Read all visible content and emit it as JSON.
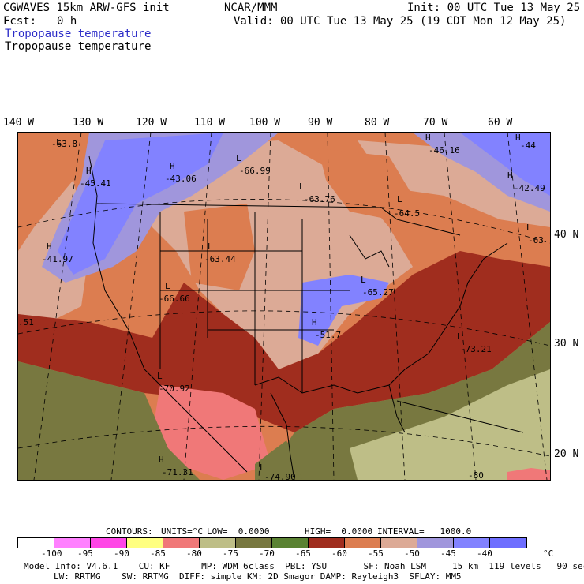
{
  "header": {
    "model_title": "CGWAVES 15km ARW-GFS init",
    "org": "NCAR/MMM",
    "init": "Init: 00 UTC Tue 13 May 25",
    "fcst_label": "Fcst:",
    "fcst_value": "0 h",
    "valid": "Valid: 00 UTC Tue 13 May 25 (19 CDT Mon 12 May 25)",
    "field_title_blue": "Tropopause temperature",
    "field_title": "Tropopause temperature"
  },
  "longitude_labels": [
    "140 W",
    "130 W",
    "120 W",
    "110 W",
    "100 W",
    "90 W",
    "80 W",
    "70 W",
    "60 W"
  ],
  "latitude_labels": [
    "40 N",
    "30 N",
    "20 N"
  ],
  "map_labels": [
    {
      "marker": "H",
      "value": "-45.41"
    },
    {
      "marker": "H",
      "value": "-43.06"
    },
    {
      "marker": "L",
      "value": "-66.99"
    },
    {
      "marker": "L",
      "value": "-63.76"
    },
    {
      "marker": "H",
      "value": "-46.16"
    },
    {
      "marker": "H",
      "value": "-44"
    },
    {
      "marker": "H",
      "value": "-42.49"
    },
    {
      "marker": "L",
      "value": "-64.5"
    },
    {
      "marker": "L",
      "value": "-63"
    },
    {
      "marker": "H",
      "value": "-41.97"
    },
    {
      "marker": "L",
      "value": "-63.44"
    },
    {
      "marker": "L",
      "value": "-66.66"
    },
    {
      "marker": "L",
      "value": "-65.27"
    },
    {
      "marker": "H",
      "value": "-51.7"
    },
    {
      "marker": "L",
      "value": "-73.21"
    },
    {
      "marker": "L",
      "value": "-70.92"
    },
    {
      "marker": "H",
      "value": "-71.31"
    },
    {
      "marker": "L",
      "value": "-74.90"
    },
    {
      "marker": "L",
      "value": "-63.8"
    },
    {
      "marker": "",
      "value": ".51"
    },
    {
      "marker": "",
      "value": "-80"
    }
  ],
  "contours": {
    "label": "CONTOURS:",
    "units": "UNITS=°C",
    "low": "LOW=  0.0000",
    "high": "HIGH=  0.0000",
    "interval": "INTERVAL=   1000.0"
  },
  "colorbar": {
    "colors": [
      "#ffffff",
      "#ff80ff",
      "#ff46e6",
      "#ffff80",
      "#f07878",
      "#bebe87",
      "#787840",
      "#5a8232",
      "#a02d1e",
      "#dc7d50",
      "#dcaa96",
      "#a096dc",
      "#8282ff",
      "#6e6eff"
    ],
    "ticks": [
      "-100",
      "-95",
      "-90",
      "-85",
      "-80",
      "-75",
      "-70",
      "-65",
      "-60",
      "-55",
      "-50",
      "-45",
      "-40",
      "°C"
    ]
  },
  "footer": {
    "line1": "Model Info: V4.6.1    CU: KF      MP: WDM 6class  PBL: YSU       SF: Noah LSM     15 km  119 levels   90 sec",
    "line2": "LW: RRTMG    SW: RRTMG  DIFF: simple KM: 2D Smagor DAMP: Rayleigh3  SFLAY: MM5"
  }
}
